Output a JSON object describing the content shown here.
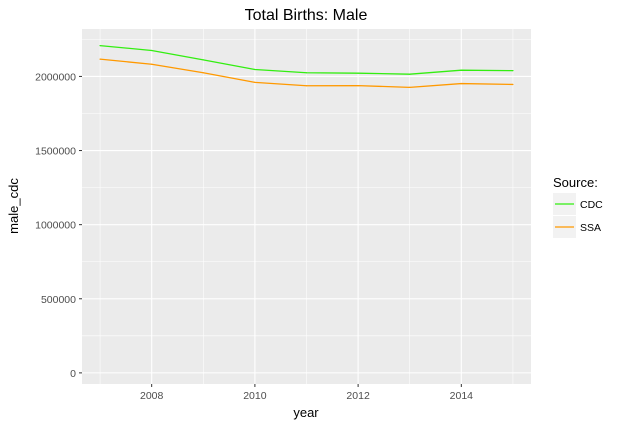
{
  "chart_data": {
    "type": "line",
    "title": "Total Births: Male",
    "xlabel": "year",
    "ylabel": "male_cdc",
    "x": [
      2007,
      2008,
      2009,
      2010,
      2011,
      2012,
      2013,
      2014,
      2015
    ],
    "xlim": [
      2006.65,
      2015.35
    ],
    "ylim": [
      -75000,
      2320000
    ],
    "x_ticks": [
      2008,
      2010,
      2012,
      2014
    ],
    "x_tick_labels": [
      "2008",
      "2010",
      "2012",
      "2014"
    ],
    "y_ticks": [
      0,
      500000,
      1000000,
      1500000,
      2000000
    ],
    "y_tick_labels": [
      "0",
      "500000",
      "1000000",
      "1500000",
      "2000000"
    ],
    "grid": true,
    "legend": {
      "title": "Source:",
      "position": "right"
    },
    "series": [
      {
        "name": "CDC",
        "color": "#33ee11",
        "values": [
          2208000,
          2175000,
          2112000,
          2047000,
          2025000,
          2022000,
          2015000,
          2042000,
          2039000
        ]
      },
      {
        "name": "SSA",
        "color": "#ff9900",
        "values": [
          2117000,
          2082000,
          2025000,
          1960000,
          1937000,
          1938000,
          1926000,
          1952000,
          1946000
        ]
      }
    ]
  }
}
